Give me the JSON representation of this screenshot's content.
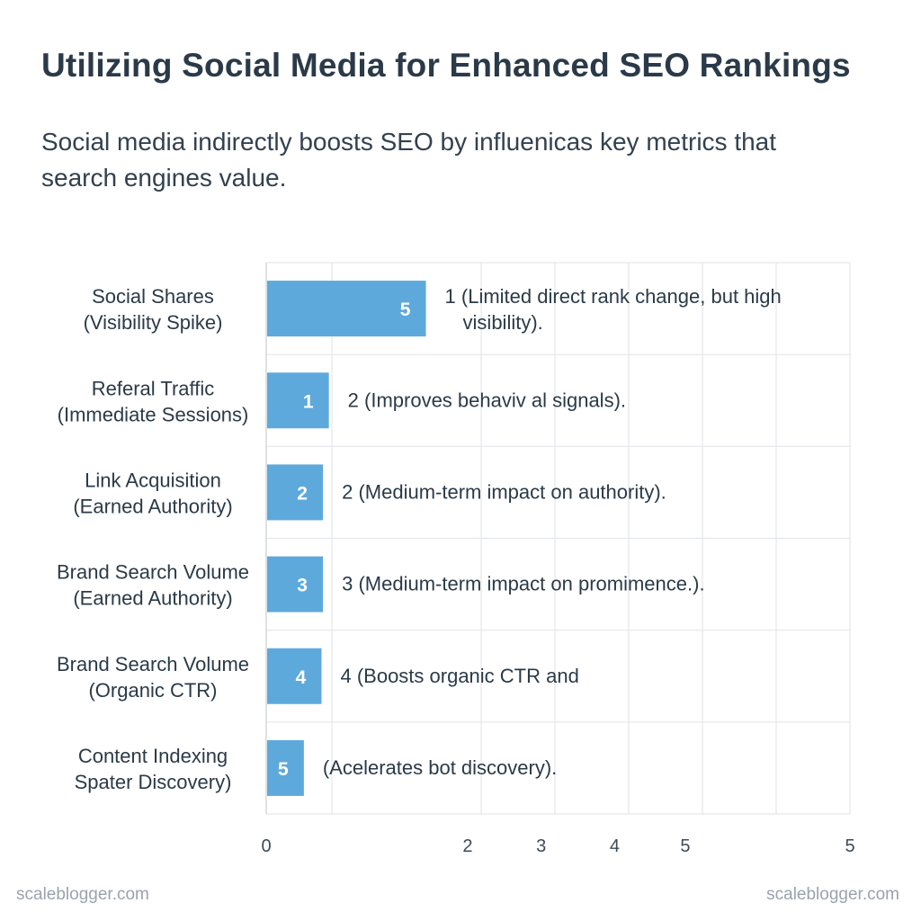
{
  "header": {
    "title": "Utilizing Social Media for Enhanced SEO Rankings",
    "subtitle": "Social media indirectly boosts SEO by influenicas key metrics that search engines value."
  },
  "footer": {
    "left": "scaleblogger.com",
    "right": "scaleblogger.com"
  },
  "colors": {
    "bar": "#5ea9dc",
    "grid": "#e3e6ea",
    "text": "#2b3a48"
  },
  "chart_data": {
    "type": "bar",
    "orientation": "horizontal",
    "title": "Utilizing Social Media for Enhanced SEO Rankings",
    "xlabel": "",
    "ylabel": "",
    "grid": true,
    "x_ticks": [
      {
        "label": "0",
        "pos": 0
      },
      {
        "label": "2",
        "pos": 1.37
      },
      {
        "label": "3",
        "pos": 1.87
      },
      {
        "label": "4",
        "pos": 2.37
      },
      {
        "label": "5",
        "pos": 2.85
      },
      {
        "label": "5",
        "pos": 3.97
      }
    ],
    "xlim": [
      0,
      3.97
    ],
    "categories": [
      [
        "Social Shares",
        "(Visibility Spike)"
      ],
      [
        "Referal Traffic",
        "(Immediate Sessions)"
      ],
      [
        "Link Acquisition",
        "(Earned Authority)"
      ],
      [
        "Brand Search Volume",
        "(Earned Authority)"
      ],
      [
        "Brand Search Volume",
        "(Organic CTR)"
      ],
      [
        "Content Indexing",
        "Spater Discovery)"
      ]
    ],
    "values": [
      1.08,
      0.42,
      0.38,
      0.38,
      0.37,
      0.25
    ],
    "bar_labels": [
      "5",
      "1",
      "2",
      "3",
      "4",
      "5"
    ],
    "annotations": [
      [
        "1 (Limited direct rank change, but high",
        "visibility)."
      ],
      [
        "2 (Improves behaviv al signals)."
      ],
      [
        "2 (Medium-term impact on authority)."
      ],
      [
        "3 (Medium-term impact on promimence.)."
      ],
      [
        "4 (Boosts organic CTR and"
      ],
      [
        "(Acelerates bot discovery)."
      ]
    ]
  }
}
